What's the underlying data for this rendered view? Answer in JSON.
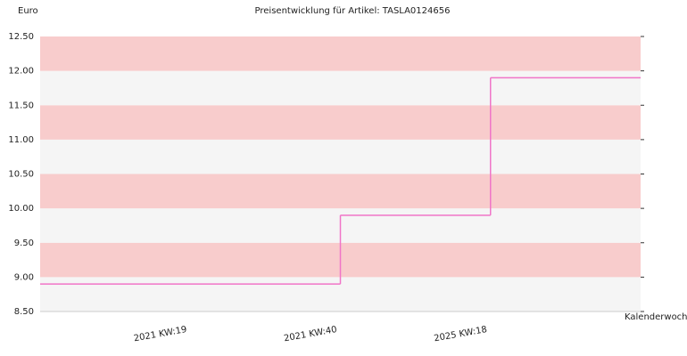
{
  "chart_data": {
    "type": "step",
    "title": "Preisentwicklung für Artikel: TASLA0124656",
    "y_label": "Euro",
    "x_label": "Kalenderwoche",
    "categories": [
      "2021 KW:19",
      "2021 KW:40",
      "2025 KW:18"
    ],
    "values": [
      8.9,
      9.9,
      11.9
    ],
    "color": "#f075c8",
    "band_colors": [
      "#f5f5f5",
      "#f8cccc"
    ],
    "ylim": [
      8.5,
      12.5
    ],
    "yticks": [
      {
        "value": 8.5,
        "label": "8.50"
      },
      {
        "value": 9,
        "label": "9.00"
      },
      {
        "value": 9.5,
        "label": "9.50"
      },
      {
        "value": 10,
        "label": "10.00"
      },
      {
        "value": 10.5,
        "label": "10.50"
      },
      {
        "value": 11,
        "label": "11.00"
      },
      {
        "value": 11.5,
        "label": "11.50"
      },
      {
        "value": 12,
        "label": "12.00"
      },
      {
        "value": 12.5,
        "label": "12.50"
      }
    ]
  }
}
